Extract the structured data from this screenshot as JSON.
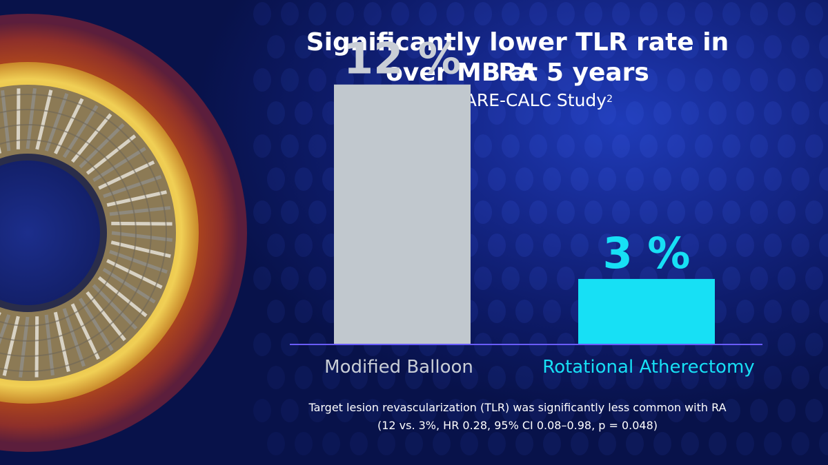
{
  "slide": {
    "title_line1": "Significantly lower TLR rate in RA",
    "title_line2": "over MB at 5 years",
    "subtitle": "PREPARE-CALC Study",
    "subtitle_superscript": "2",
    "footnote_line1": "Target lesion revascularization (TLR) was significantly less common with RA",
    "footnote_line2": "(12 vs. 3%, HR 0.28, 95% CI 0.08–0.98, p = 0.048)"
  },
  "colors": {
    "background": "#10238a",
    "bar_mb": "#c1c8ce",
    "bar_ra": "#17e0f5",
    "label_mb": "#c9ced6",
    "label_ra": "#17e0f5",
    "baseline": "#6a5cff"
  },
  "chart_data": {
    "type": "bar",
    "categories": [
      "Modified Balloon",
      "Rotational Atherectomy"
    ],
    "values": [
      12,
      3
    ],
    "value_labels": [
      "12 %",
      "3 %"
    ],
    "unit": "%",
    "ylim": [
      0,
      14
    ],
    "grid": false,
    "legend": "none"
  }
}
